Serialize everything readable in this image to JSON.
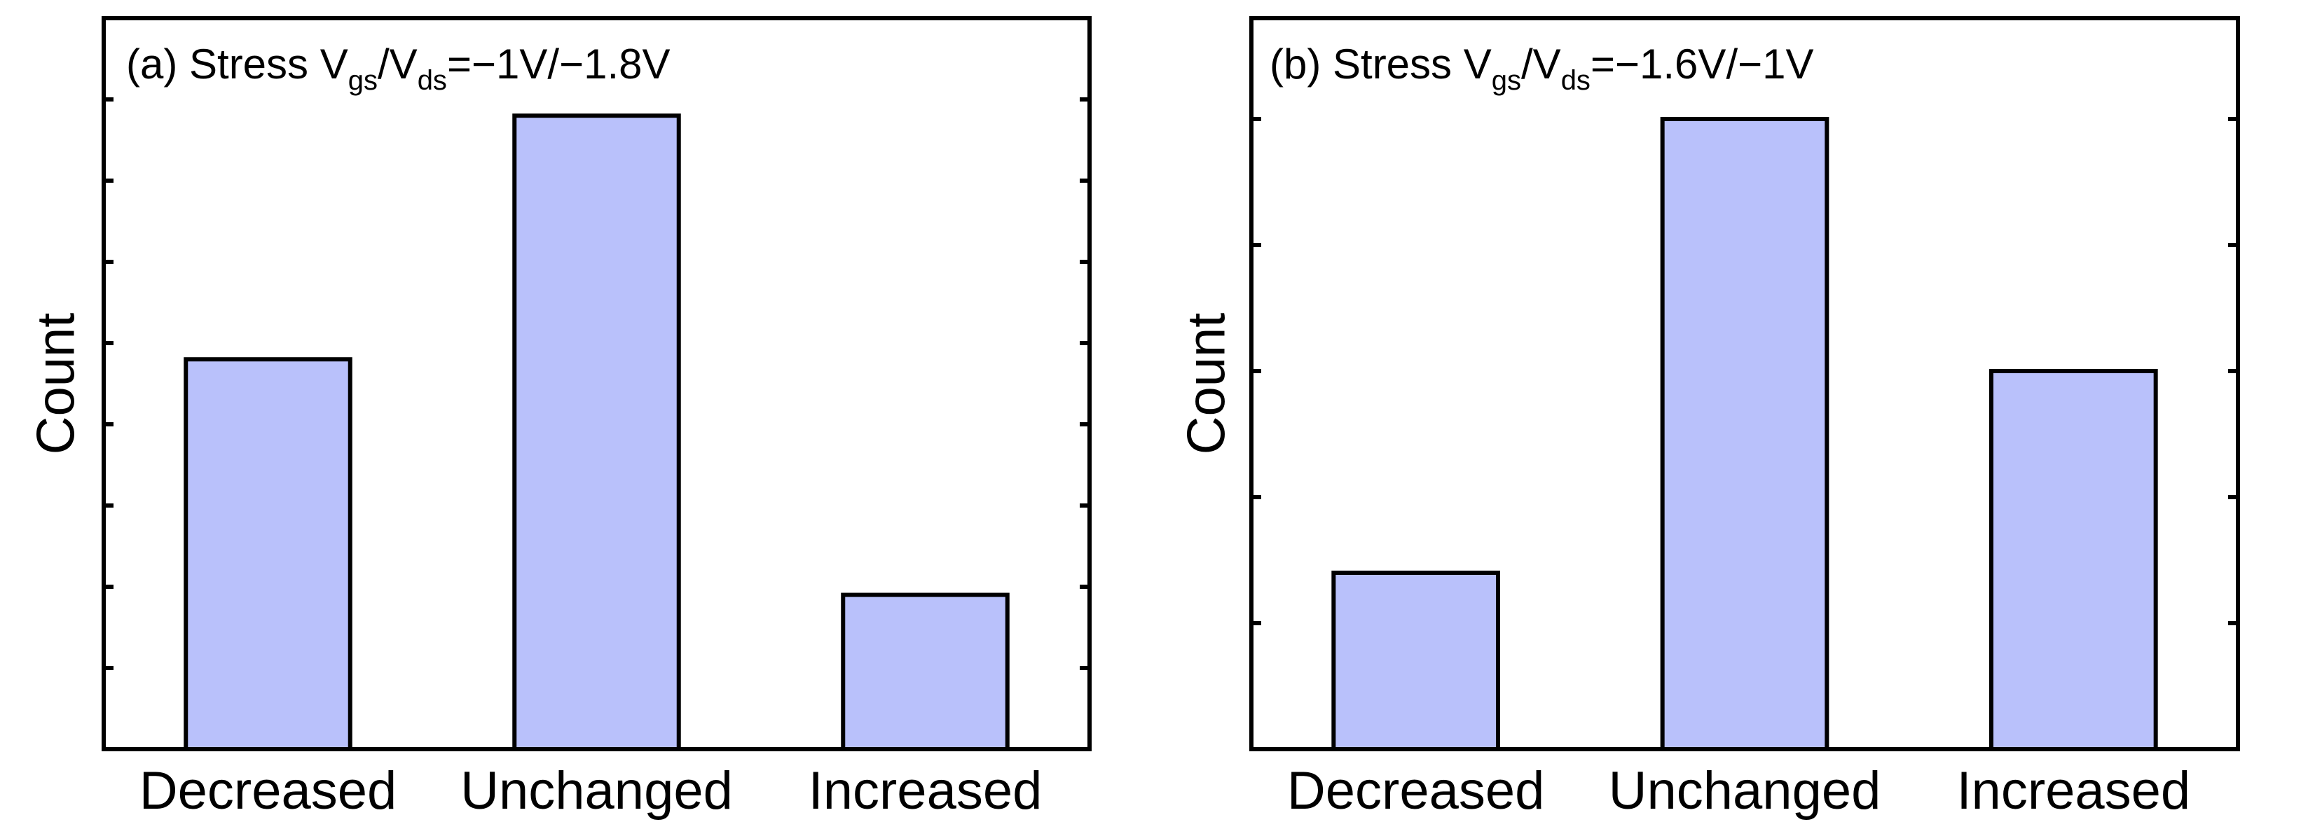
{
  "colors": {
    "bar_fill": "#b9c1fb",
    "frame": "#000000"
  },
  "chart_data": [
    {
      "panel": "(a)",
      "type": "bar",
      "title_parts": {
        "prefix": "(a) Stress V",
        "sub1": "gs",
        "mid": "/V",
        "sub2": "ds",
        "suffix": "=−1V/−1.8V"
      },
      "xlabel": "",
      "ylabel": "Count",
      "categories": [
        "Decreased",
        "Unchanged",
        "Increased"
      ],
      "values": [
        48,
        78,
        19
      ],
      "ylim": [
        0,
        90
      ],
      "ytick_step": 10,
      "ytick_labels_shown": false,
      "grid": false
    },
    {
      "panel": "(b)",
      "type": "bar",
      "title_parts": {
        "prefix": "(b) Stress V",
        "sub1": "gs",
        "mid": "/V",
        "sub2": "ds",
        "suffix": "=−1.6V/−1V"
      },
      "xlabel": "",
      "ylabel": "Count",
      "categories": [
        "Decreased",
        "Unchanged",
        "Increased"
      ],
      "values": [
        14,
        50,
        30
      ],
      "ylim": [
        0,
        58
      ],
      "ytick_step": 10,
      "ytick_labels_shown": false,
      "grid": false
    }
  ]
}
